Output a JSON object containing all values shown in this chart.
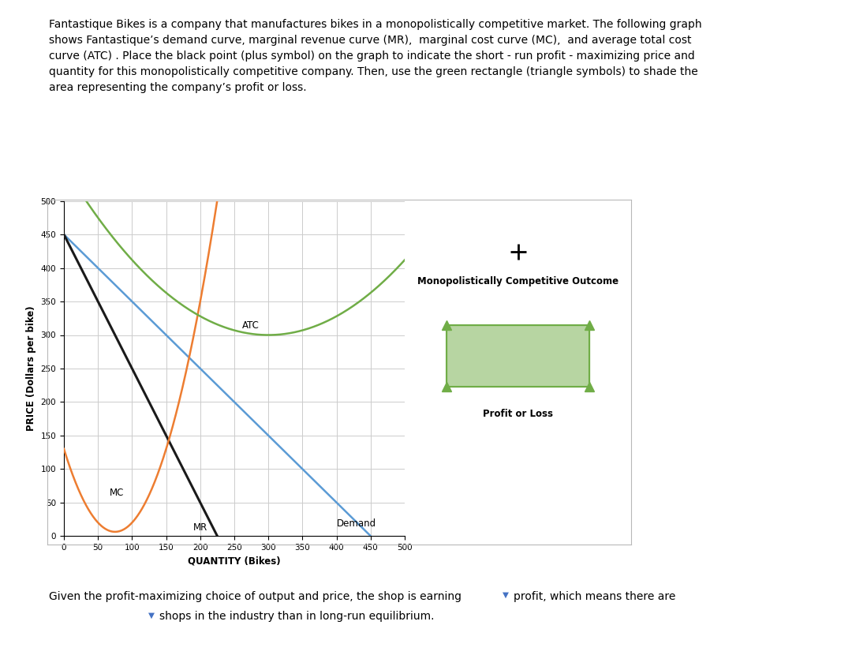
{
  "xlabel": "QUANTITY (Bikes)",
  "ylabel": "PRICE (Dollars per bike)",
  "xlim": [
    0,
    500
  ],
  "ylim": [
    0,
    500
  ],
  "xticks": [
    0,
    50,
    100,
    150,
    200,
    250,
    300,
    350,
    400,
    450,
    500
  ],
  "yticks": [
    0,
    50,
    100,
    150,
    200,
    250,
    300,
    350,
    400,
    450,
    500
  ],
  "demand_color": "#5b9bd5",
  "mr_color": "#1a1a1a",
  "mc_color": "#ed7d31",
  "atc_color": "#70ad47",
  "bg_color": "#ffffff",
  "grid_color": "#cccccc",
  "mc_a": 0.022,
  "mc_b": -3.3,
  "mc_c": 130.0,
  "atc_a": 0.0028,
  "atc_b": -1.68,
  "atc_c": 552.0,
  "top_text_line1": "Fantastique Bikes is a company that manufactures bikes in a monopolistically competitive market. The following graph",
  "top_text_line2": "shows Fantastique’s demand curve, marginal revenue curve (MR),  marginal cost curve (MC),  and average total cost",
  "top_text_line3": "curve (ATC) . Place the black point (plus symbol) on the graph to indicate the short - run profit - maximizing price and",
  "top_text_line4": "quantity for this monopolistically competitive company. Then, use the green rectangle (triangle symbols) to shade the",
  "top_text_line5": "area representing the company’s profit or loss.",
  "legend_label1": "Monopolistically Competitive Outcome",
  "legend_label2": "Profit or Loss",
  "bottom1": "Given the profit-maximizing choice of output and price, the shop is earning",
  "bottom2": "profit, which means there are",
  "bottom3": "shops in the industry than in long-run equilibrium.",
  "box_color": "#c0c0c0",
  "dropdown_color": "#4472c4"
}
